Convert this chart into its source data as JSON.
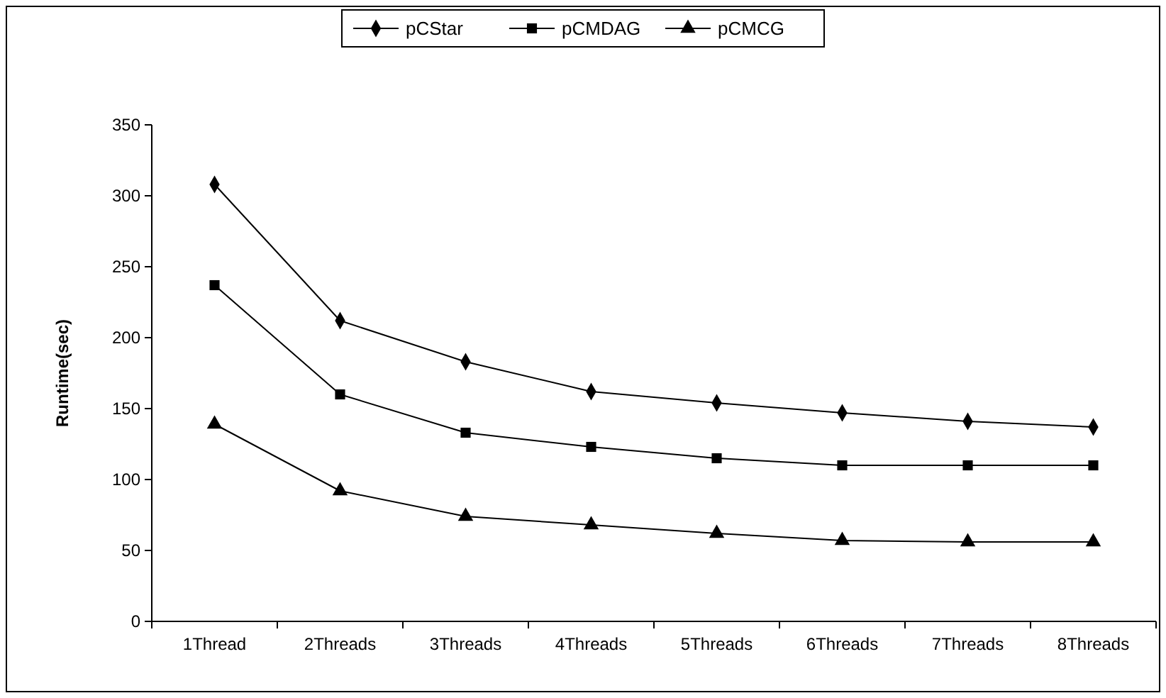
{
  "chart_data": {
    "type": "line",
    "ylabel": "Runtime(sec)",
    "categories": [
      "1Thread",
      "2Threads",
      "3Threads",
      "4Threads",
      "5Threads",
      "6Threads",
      "7Threads",
      "8Threads"
    ],
    "ylim": [
      0,
      350
    ],
    "yticks": [
      0,
      50,
      100,
      150,
      200,
      250,
      300,
      350
    ],
    "legend": "top",
    "grid": false,
    "line_style": "solid",
    "series": [
      {
        "name": "pCStar",
        "color": "#000000",
        "marker": "diamond",
        "values": [
          308,
          212,
          183,
          162,
          154,
          147,
          141,
          137
        ]
      },
      {
        "name": "pCMDAG",
        "color": "#000000",
        "marker": "square",
        "values": [
          237,
          160,
          133,
          123,
          115,
          110,
          110,
          110
        ]
      },
      {
        "name": "pCMCG",
        "color": "#000000",
        "marker": "triangle",
        "values": [
          139,
          92,
          74,
          68,
          62,
          57,
          56,
          56
        ]
      }
    ]
  }
}
